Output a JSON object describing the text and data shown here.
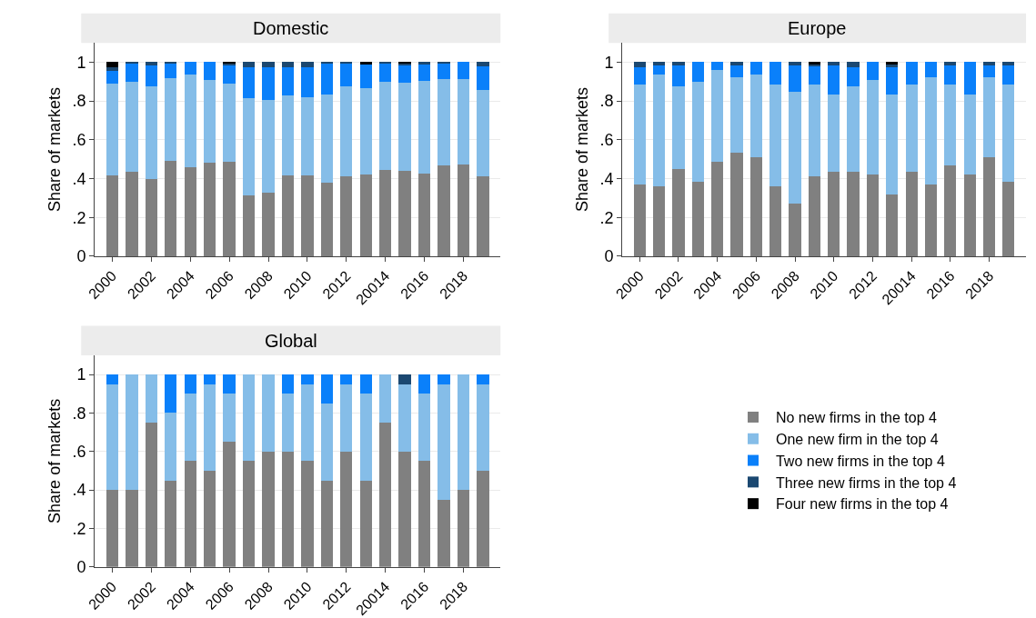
{
  "chart_data": [
    {
      "type": "bar",
      "title": "Domestic",
      "ylabel": "Share of markets",
      "stacked": true,
      "grid": "y",
      "ylim": [
        0,
        1.1
      ],
      "legend": "bottom right",
      "yticks": [
        {
          "value": 0,
          "label": "0"
        },
        {
          "value": 0.2,
          "label": ".2"
        },
        {
          "value": 0.4,
          "label": ".4"
        },
        {
          "value": 0.6,
          "label": ".6"
        },
        {
          "value": 0.8,
          "label": ".8"
        },
        {
          "value": 1,
          "label": "1"
        }
      ],
      "categories": [
        "2000",
        null,
        "2002",
        null,
        "2004",
        null,
        "2006",
        null,
        "2008",
        null,
        "2010",
        null,
        "2012",
        null,
        "20014",
        null,
        "2016",
        null,
        "2018",
        null
      ],
      "series": [
        {
          "name": "No new firms in the top 4",
          "color": "#808080",
          "values": [
            0.415,
            0.435,
            0.4,
            0.49,
            0.46,
            0.48,
            0.485,
            0.315,
            0.33,
            0.415,
            0.415,
            0.38,
            0.41,
            0.42,
            0.445,
            0.44,
            0.425,
            0.47,
            0.475,
            0.41
          ]
        },
        {
          "name": "One new firm in the top 4",
          "color": "#85bde8",
          "values": [
            0.475,
            0.465,
            0.475,
            0.43,
            0.475,
            0.43,
            0.405,
            0.5,
            0.475,
            0.415,
            0.405,
            0.455,
            0.465,
            0.445,
            0.455,
            0.455,
            0.48,
            0.445,
            0.44,
            0.445
          ]
        },
        {
          "name": "Two new firms in the top 4",
          "color": "#0a80fa",
          "values": [
            0.065,
            0.095,
            0.11,
            0.075,
            0.065,
            0.09,
            0.095,
            0.16,
            0.17,
            0.145,
            0.155,
            0.16,
            0.12,
            0.125,
            0.095,
            0.09,
            0.085,
            0.08,
            0.085,
            0.125
          ]
        },
        {
          "name": "Three new firms in the top 4",
          "color": "#1b4871",
          "values": [
            0.02,
            0.005,
            0.015,
            0.005,
            0,
            0,
            0.01,
            0.025,
            0.025,
            0.025,
            0.025,
            0.005,
            0.005,
            0,
            0.005,
            0.01,
            0.01,
            0.005,
            0,
            0.02
          ]
        },
        {
          "name": "Four new firms in the top 4",
          "color": "#000000",
          "values": [
            0.025,
            0,
            0,
            0,
            0,
            0,
            0.005,
            0,
            0,
            0,
            0,
            0,
            0,
            0.01,
            0,
            0.005,
            0,
            0,
            0,
            0
          ]
        }
      ]
    },
    {
      "type": "bar",
      "title": "Europe",
      "ylabel": "Share of markets",
      "stacked": true,
      "grid": "y",
      "ylim": [
        0,
        1.1
      ],
      "yticks": [
        {
          "value": 0,
          "label": "0"
        },
        {
          "value": 0.2,
          "label": ".2"
        },
        {
          "value": 0.4,
          "label": ".4"
        },
        {
          "value": 0.6,
          "label": ".6"
        },
        {
          "value": 0.8,
          "label": ".8"
        },
        {
          "value": 1,
          "label": "1"
        }
      ],
      "categories": [
        "2000",
        null,
        "2002",
        null,
        "2004",
        null,
        "2006",
        null,
        "2008",
        null,
        "2010",
        null,
        "2012",
        null,
        "20014",
        null,
        "2016",
        null,
        "2018",
        null
      ],
      "series": [
        {
          "color": "#808080",
          "values": [
            0.37,
            0.36,
            0.45,
            0.385,
            0.485,
            0.535,
            0.51,
            0.36,
            0.27,
            0.41,
            0.435,
            0.435,
            0.42,
            0.32,
            0.435,
            0.37,
            0.47,
            0.42,
            0.51,
            0.385
          ]
        },
        {
          "color": "#85bde8",
          "values": [
            0.515,
            0.575,
            0.425,
            0.515,
            0.475,
            0.39,
            0.425,
            0.525,
            0.58,
            0.475,
            0.4,
            0.44,
            0.49,
            0.515,
            0.45,
            0.555,
            0.415,
            0.415,
            0.415,
            0.5
          ]
        },
        {
          "color": "#0a80fa",
          "values": [
            0.09,
            0.05,
            0.11,
            0.1,
            0.04,
            0.06,
            0.065,
            0.115,
            0.135,
            0.095,
            0.15,
            0.1,
            0.09,
            0.14,
            0.115,
            0.075,
            0.1,
            0.165,
            0.06,
            0.1
          ]
        },
        {
          "color": "#1b4871",
          "values": [
            0.025,
            0.015,
            0.015,
            0,
            0,
            0.015,
            0,
            0,
            0.015,
            0.01,
            0.015,
            0.025,
            0,
            0.015,
            0,
            0,
            0.015,
            0,
            0.015,
            0.015
          ]
        },
        {
          "color": "#000000",
          "values": [
            0,
            0,
            0,
            0,
            0,
            0,
            0,
            0,
            0,
            0.01,
            0,
            0,
            0,
            0.01,
            0,
            0,
            0,
            0,
            0,
            0
          ]
        }
      ]
    },
    {
      "type": "bar",
      "title": "Global",
      "ylabel": "Share of markets",
      "stacked": true,
      "grid": "y",
      "ylim": [
        0,
        1.1
      ],
      "yticks": [
        {
          "value": 0,
          "label": "0"
        },
        {
          "value": 0.2,
          "label": ".2"
        },
        {
          "value": 0.4,
          "label": ".4"
        },
        {
          "value": 0.6,
          "label": ".6"
        },
        {
          "value": 0.8,
          "label": ".8"
        },
        {
          "value": 1,
          "label": "1"
        }
      ],
      "categories": [
        "2000",
        null,
        "2002",
        null,
        "2004",
        null,
        "2006",
        null,
        "2008",
        null,
        "2010",
        null,
        "2012",
        null,
        "20014",
        null,
        "2016",
        null,
        "2018",
        null
      ],
      "series": [
        {
          "color": "#808080",
          "values": [
            0.4,
            0.4,
            0.75,
            0.45,
            0.55,
            0.5,
            0.65,
            0.55,
            0.6,
            0.6,
            0.55,
            0.45,
            0.6,
            0.45,
            0.75,
            0.6,
            0.55,
            0.35,
            0.4,
            0.5
          ]
        },
        {
          "color": "#85bde8",
          "values": [
            0.55,
            0.6,
            0.25,
            0.35,
            0.35,
            0.45,
            0.25,
            0.45,
            0.4,
            0.3,
            0.4,
            0.4,
            0.35,
            0.45,
            0.25,
            0.35,
            0.35,
            0.6,
            0.6,
            0.45
          ]
        },
        {
          "color": "#0a80fa",
          "values": [
            0.05,
            0,
            0,
            0.2,
            0.1,
            0.05,
            0.1,
            0,
            0,
            0.1,
            0.05,
            0.15,
            0.05,
            0.1,
            0,
            0,
            0.1,
            0.05,
            0,
            0.05
          ]
        },
        {
          "color": "#1b4871",
          "values": [
            0,
            0,
            0,
            0,
            0,
            0,
            0,
            0,
            0,
            0,
            0,
            0,
            0,
            0,
            0,
            0.05,
            0,
            0,
            0,
            0
          ]
        },
        {
          "color": "#000000",
          "values": [
            0,
            0,
            0,
            0,
            0,
            0,
            0,
            0,
            0,
            0,
            0,
            0,
            0,
            0,
            0,
            0,
            0,
            0,
            0,
            0
          ]
        }
      ]
    }
  ]
}
